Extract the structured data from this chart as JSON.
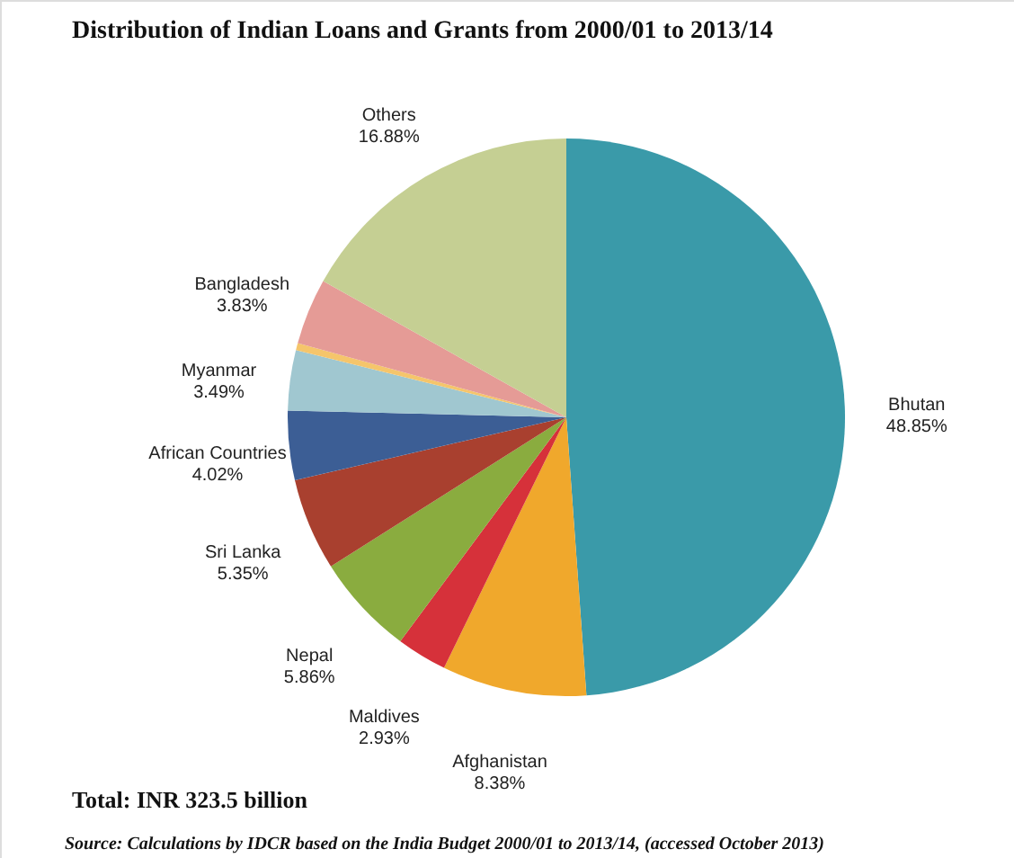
{
  "chart_data": {
    "type": "pie",
    "title": "Distribution of Indian Loans and Grants from 2000/01 to 2013/14",
    "categories": [
      "Bhutan",
      "Afghanistan",
      "Maldives",
      "Nepal",
      "Sri Lanka",
      "African Countries",
      "Myanmar",
      null,
      "Bangladesh",
      "Others"
    ],
    "values": [
      48.85,
      8.38,
      2.93,
      5.86,
      5.35,
      4.02,
      3.49,
      0.41,
      3.83,
      16.88
    ],
    "value_labels": [
      "48.85%",
      "8.38%",
      "2.93%",
      "5.86%",
      "5.35%",
      "4.02%",
      "3.49%",
      null,
      "3.83%",
      "16.88%"
    ],
    "colors": [
      "#3a9aa9",
      "#f0a82c",
      "#d6313a",
      "#8aac3f",
      "#a9402f",
      "#3c5e95",
      "#a0c7d0",
      "#f5c56b",
      "#e59b96",
      "#c5cf93"
    ],
    "annotations": [
      "Total: INR 323.5 billion",
      "Source: Calculations by IDCR based on the India Budget 2000/01 to 2013/14, (accessed October 2013)"
    ],
    "legend": false
  }
}
